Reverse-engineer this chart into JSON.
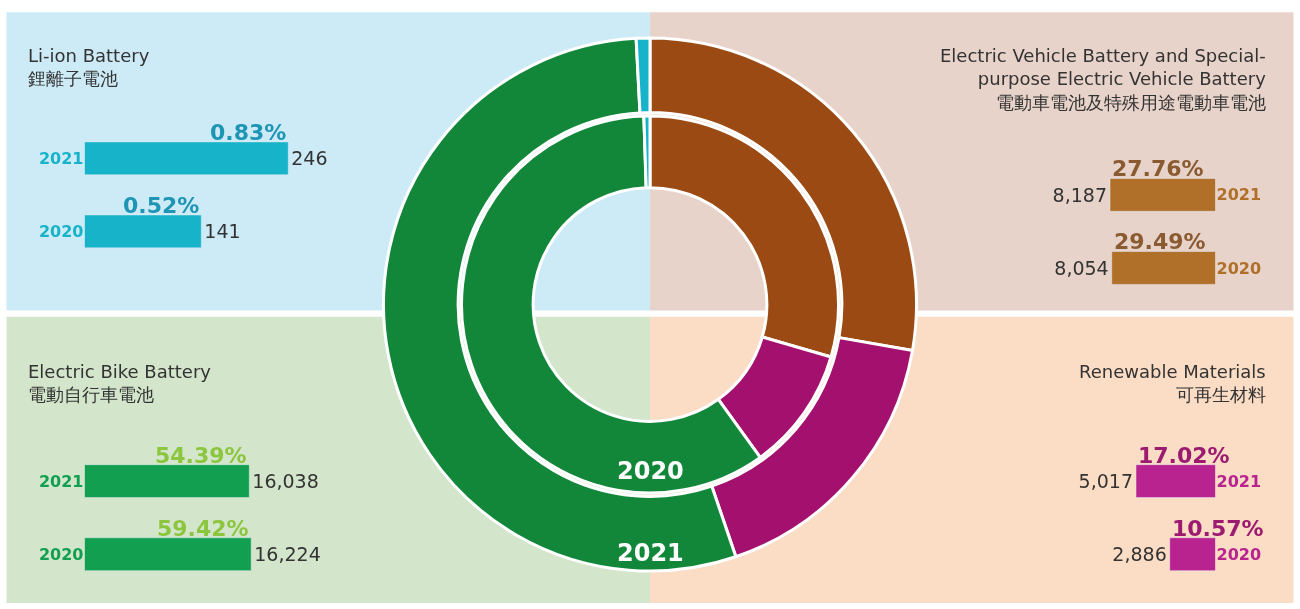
{
  "chart_data": [
    {
      "type": "bar",
      "orientation": "horizontal",
      "title": "Li-ion Battery\n鋰離子電池",
      "categories": [
        "2021",
        "2020"
      ],
      "values": [
        246,
        141
      ],
      "value_labels": [
        "246",
        "141"
      ],
      "color": "#17b3c9",
      "annotations": [
        {
          "text": "0.83%",
          "x": 246,
          "y": "2021"
        },
        {
          "text": "0.52%",
          "x": 141,
          "y": "2020"
        }
      ]
    },
    {
      "type": "bar",
      "orientation": "horizontal",
      "title": "Electric Vehicle Battery and Special-\npurpose Electric Vehicle Battery\n電動車電池及特殊用途電動車電池",
      "categories": [
        "2021",
        "2020"
      ],
      "values": [
        8187,
        8054
      ],
      "value_labels": [
        "8,187",
        "8,054"
      ],
      "color": "#b0702a",
      "annotations": [
        {
          "text": "27.76%",
          "x": 8187,
          "y": "2021"
        },
        {
          "text": "29.49%",
          "x": 8054,
          "y": "2020"
        }
      ]
    },
    {
      "type": "bar",
      "orientation": "horizontal",
      "title": "Electric Bike Battery\n電動自行車電池",
      "categories": [
        "2021",
        "2020"
      ],
      "values": [
        16038,
        16224
      ],
      "value_labels": [
        "16,038",
        "16,224"
      ],
      "color": "#12a050",
      "annotations": [
        {
          "text": "54.39%",
          "x": 16038,
          "y": "2021"
        },
        {
          "text": "59.42%",
          "x": 16224,
          "y": "2020"
        }
      ]
    },
    {
      "type": "bar",
      "orientation": "horizontal",
      "title": "Renewable Materials\n可再生材料",
      "categories": [
        "2021",
        "2020"
      ],
      "values": [
        5017,
        2886
      ],
      "value_labels": [
        "5,017",
        "2,886"
      ],
      "color": "#b8238f",
      "annotations": [
        {
          "text": "17.02%",
          "x": 5017,
          "y": "2021"
        },
        {
          "text": "10.57%",
          "x": 2886,
          "y": "2020"
        }
      ]
    },
    {
      "type": "donut",
      "categories": [
        null,
        null,
        null,
        null
      ],
      "colors": [
        "#9a4a12",
        "#a3106e",
        "#12873a",
        "#17b3c9"
      ],
      "series": [
        {
          "name": "2021",
          "values": [
            27.76,
            17.02,
            54.39,
            0.83
          ]
        },
        {
          "name": "2020",
          "values": [
            29.49,
            10.57,
            59.42,
            0.52
          ]
        }
      ]
    }
  ]
}
